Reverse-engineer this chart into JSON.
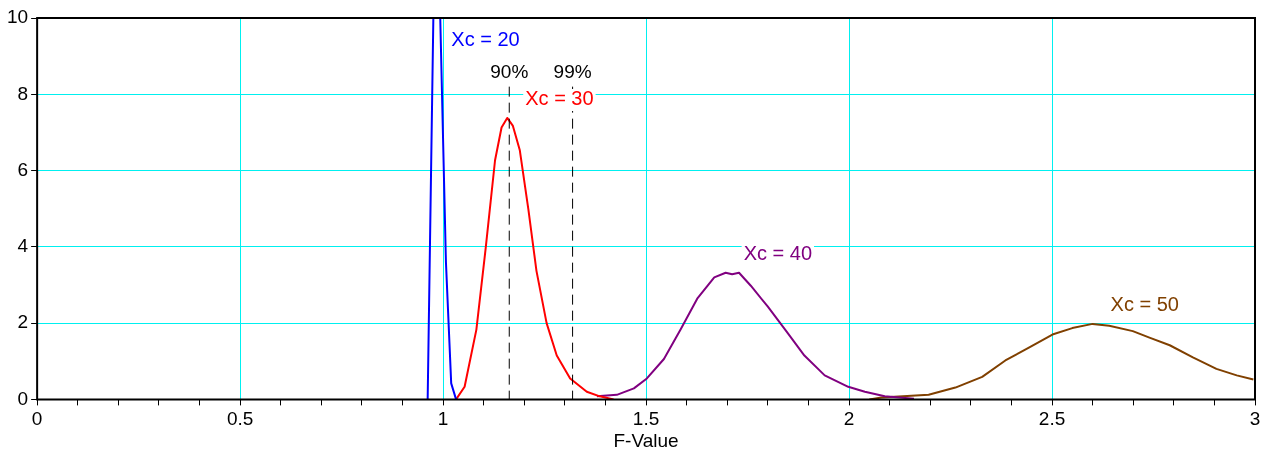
{
  "chart_data": {
    "type": "line",
    "xlabel": "F-Value",
    "xlim": [
      0,
      3
    ],
    "ylim": [
      0,
      10
    ],
    "xticks": [
      0,
      {
        "value": 0.1,
        "label": null
      },
      {
        "value": 0.2,
        "label": null
      },
      {
        "value": 0.3,
        "label": null
      },
      {
        "value": 0.4,
        "label": null
      },
      0.5,
      {
        "value": 0.6,
        "label": null
      },
      {
        "value": 0.7,
        "label": null
      },
      {
        "value": 0.8,
        "label": null
      },
      {
        "value": 0.9,
        "label": null
      },
      1,
      {
        "value": 1.1,
        "label": null
      },
      {
        "value": 1.2,
        "label": null
      },
      {
        "value": 1.3,
        "label": null
      },
      {
        "value": 1.4,
        "label": null
      },
      1.5,
      {
        "value": 1.6,
        "label": null
      },
      {
        "value": 1.7,
        "label": null
      },
      {
        "value": 1.8,
        "label": null
      },
      {
        "value": 1.9,
        "label": null
      },
      2,
      {
        "value": 2.1,
        "label": null
      },
      {
        "value": 2.2,
        "label": null
      },
      {
        "value": 2.3,
        "label": null
      },
      {
        "value": 2.4,
        "label": null
      },
      2.5,
      {
        "value": 2.6,
        "label": null
      },
      {
        "value": 2.7,
        "label": null
      },
      {
        "value": 2.8,
        "label": null
      },
      {
        "value": 2.9,
        "label": null
      },
      3
    ],
    "yticks": [
      0,
      2,
      4,
      6,
      8,
      10
    ],
    "grid": true,
    "legend": false,
    "marker": "none",
    "line_style": "solid",
    "series": [
      {
        "name": "Xc = 20",
        "color": "#0000ff",
        "x": [
          0.962,
          0.976,
          0.993,
          1.007,
          1.02,
          1.032
        ],
        "values": [
          0,
          10,
          10,
          3.6,
          0.42,
          0
        ]
      },
      {
        "name": "Xc = 30",
        "color": "#ff0000",
        "x": [
          1.032,
          1.053,
          1.082,
          1.105,
          1.128,
          1.144,
          1.158,
          1.172,
          1.189,
          1.21,
          1.23,
          1.255,
          1.28,
          1.313,
          1.354,
          1.386,
          1.42
        ],
        "values": [
          0,
          0.33,
          1.83,
          3.97,
          6.27,
          7.13,
          7.38,
          7.17,
          6.53,
          4.99,
          3.37,
          2.0,
          1.15,
          0.55,
          0.2,
          0.08,
          0
        ]
      },
      {
        "name": "Xc = 40",
        "color": "#800080",
        "x": [
          1.379,
          1.428,
          1.47,
          1.502,
          1.544,
          1.585,
          1.626,
          1.668,
          1.696,
          1.712,
          1.729,
          1.758,
          1.8,
          1.849,
          1.89,
          1.94,
          1.998,
          2.039,
          2.088,
          2.16
        ],
        "values": [
          0.08,
          0.12,
          0.29,
          0.55,
          1.06,
          1.83,
          2.64,
          3.2,
          3.32,
          3.28,
          3.32,
          2.98,
          2.43,
          1.74,
          1.15,
          0.63,
          0.33,
          0.2,
          0.08,
          0.02
        ]
      },
      {
        "name": "Xc = 50",
        "color": "#804000",
        "x": [
          2.05,
          2.08,
          2.196,
          2.262,
          2.328,
          2.385,
          2.443,
          2.501,
          2.55,
          2.6,
          2.641,
          2.699,
          2.74,
          2.79,
          2.847,
          2.905,
          2.955,
          2.996
        ],
        "values": [
          0,
          0.05,
          0.12,
          0.31,
          0.59,
          1.02,
          1.36,
          1.7,
          1.87,
          1.98,
          1.93,
          1.79,
          1.62,
          1.42,
          1.1,
          0.8,
          0.63,
          0.52
        ]
      }
    ],
    "ref_lines": [
      {
        "axis": "x",
        "value": 1.163,
        "color": "#000000",
        "line_style": "dashed"
      },
      {
        "axis": "x",
        "value": 1.319,
        "color": "#000000",
        "line_style": "dashed"
      }
    ],
    "annotations": [
      "90%",
      "99%"
    ]
  }
}
